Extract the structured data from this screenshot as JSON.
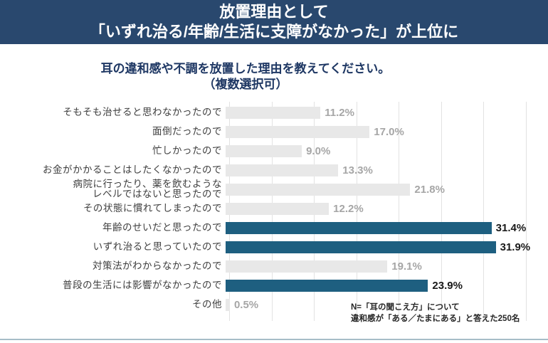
{
  "header": {
    "line1": "放置理由として",
    "line2": "「いずれ治る/年齢/生活に支障がなかった」が上位に"
  },
  "question": {
    "line1": "耳の違和感や不調を放置した理由を教えてください。",
    "line2": "（複数選択可）"
  },
  "note": {
    "line1": "N=「耳の聞こえ方」について",
    "line2": "違和感が「ある／たまにある」と答えた250名"
  },
  "colors": {
    "header_bg": "#29486E",
    "header_text": "#FFFFFF",
    "question_text": "#1F3864",
    "category_text": "#3F3F3F",
    "bar_default": "#E8E8E8",
    "bar_highlight": "#1E5F80",
    "value_default": "#A6A6A6",
    "value_highlight": "#191919",
    "grid": "#E2E2E2",
    "divider": "#A7BDC8",
    "note_text": "#262626"
  },
  "chart_data": {
    "type": "bar",
    "orientation": "horizontal",
    "title": "耳の違和感や不調を放置した理由を教えてください。（複数選択可）",
    "unit": "%",
    "xlim": [
      0,
      35
    ],
    "gridline_step": 5,
    "grid": true,
    "legend": "none",
    "categories": [
      "そもそも治せると思わなかったので",
      "面倒だったので",
      "忙しかったので",
      "お金がかかることはしたくなかったので",
      "病院に行ったり、薬を飲むような\nレベルではないと思ったので",
      "その状態に慣れてしまったので",
      "年齢のせいだと思ったので",
      "いずれ治ると思っていたので",
      "対策法がわからなかったので",
      "普段の生活には影響がなかったので",
      "その他"
    ],
    "values": [
      11.2,
      17.0,
      9.0,
      13.3,
      21.8,
      12.2,
      31.4,
      31.9,
      19.1,
      23.9,
      0.5
    ],
    "value_labels": [
      "11.2%",
      "17.0%",
      "9.0%",
      "13.3%",
      "21.8%",
      "12.2%",
      "31.4%",
      "31.9%",
      "19.1%",
      "23.9%",
      "0.5%"
    ],
    "highlighted": [
      false,
      false,
      false,
      false,
      false,
      false,
      true,
      true,
      false,
      true,
      false
    ]
  }
}
